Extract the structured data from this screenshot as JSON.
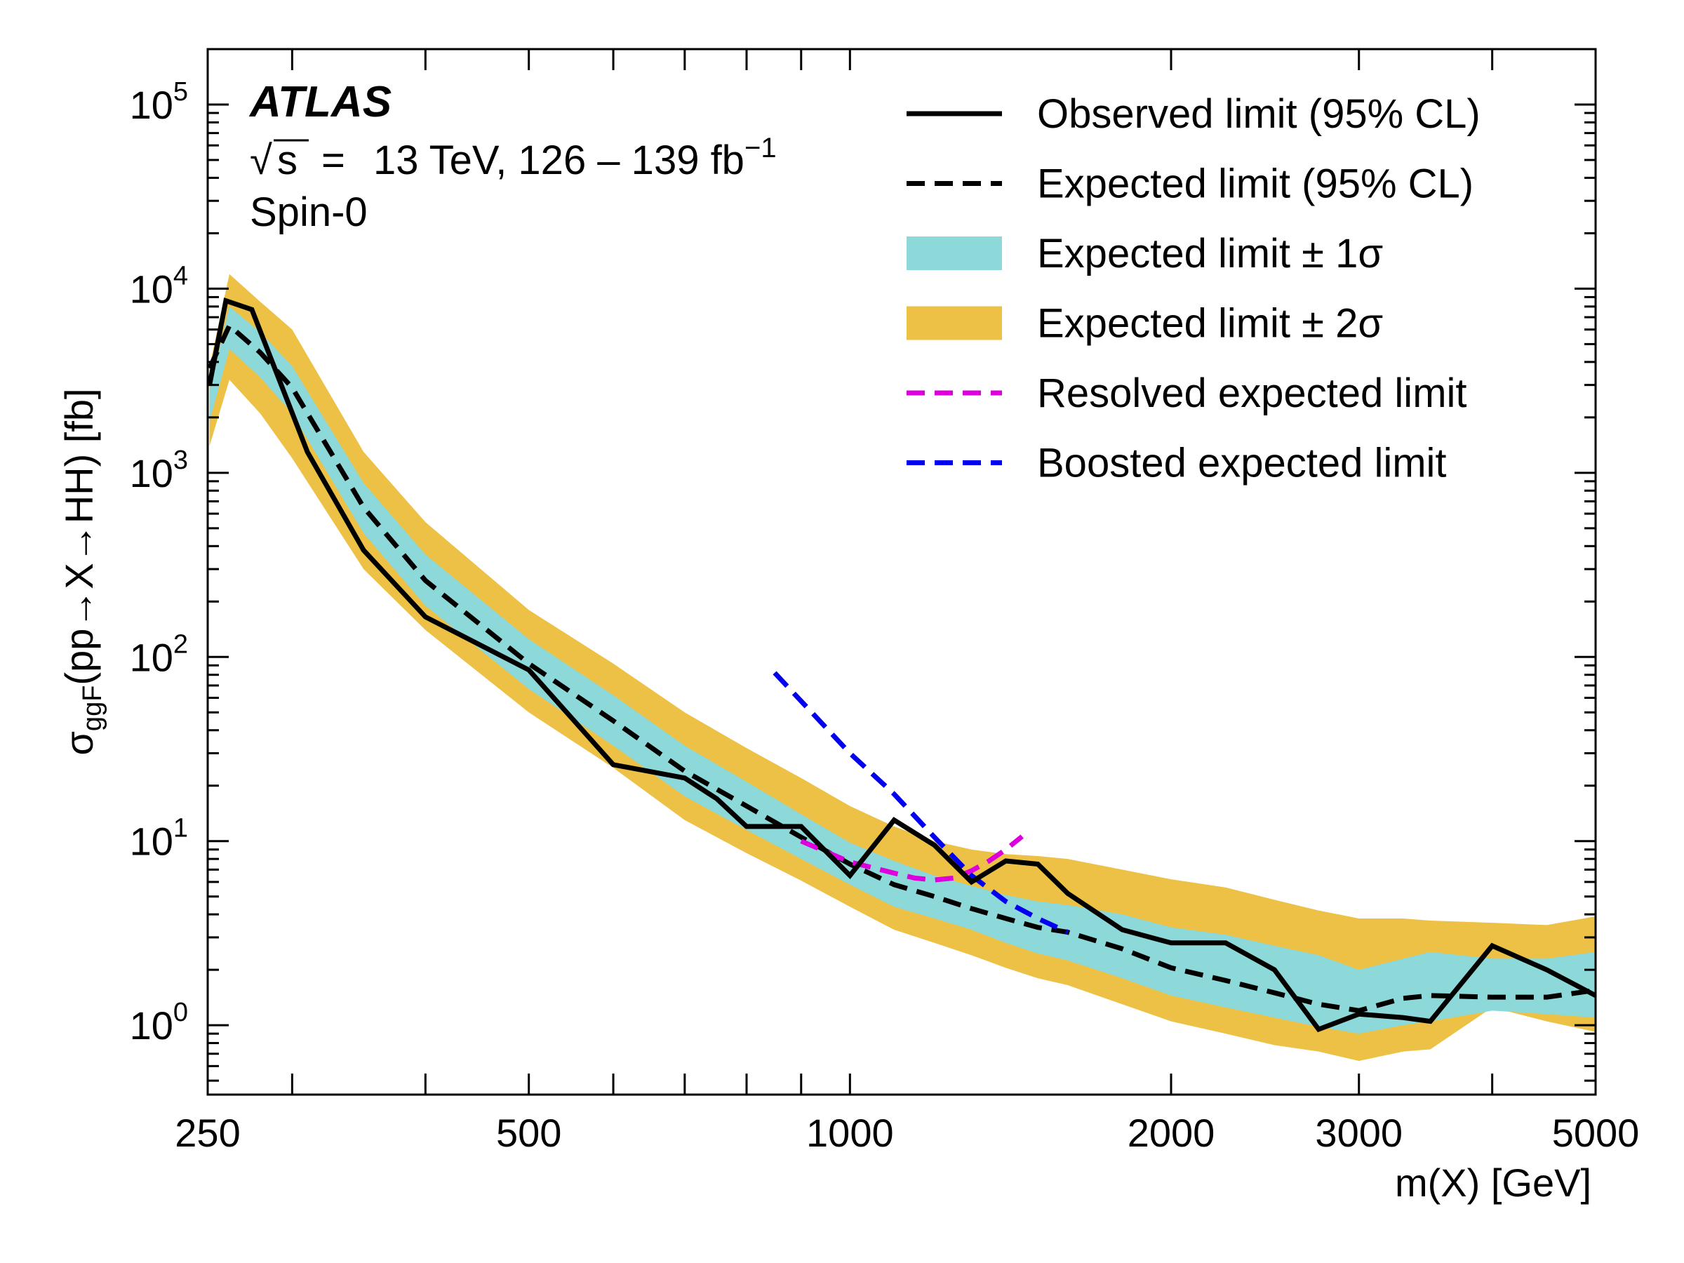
{
  "chart_data": {
    "type": "line",
    "experiment_label": "ATLAS",
    "energy_label": {
      "sqrt": "√",
      "s": "s",
      "eq": "=",
      "text": "13 TeV, 126 – 139 fb",
      "sup": "−1"
    },
    "spin_label": "Spin-0",
    "xlabel": "m(X) [GeV]",
    "ylabel": {
      "sigma": "σ",
      "sub": "ggF",
      "rest": "(pp→X→HH) [fb]"
    },
    "xscale": "log",
    "yscale": "log",
    "xlim": [
      250,
      5000
    ],
    "ylim": [
      0.42,
      200000
    ],
    "x_ticks": [
      250,
      500,
      1000,
      2000,
      3000,
      5000
    ],
    "x_tick_labels": [
      "250",
      "500",
      "1000",
      "2000",
      "3000",
      "5000"
    ],
    "y_ticks": [
      {
        "base": "10",
        "exp": "0",
        "value": 1
      },
      {
        "base": "10",
        "exp": "1",
        "value": 10
      },
      {
        "base": "10",
        "exp": "2",
        "value": 100
      },
      {
        "base": "10",
        "exp": "3",
        "value": 1000
      },
      {
        "base": "10",
        "exp": "4",
        "value": 10000
      },
      {
        "base": "10",
        "exp": "5",
        "value": 100000
      }
    ],
    "legend_position": "top-right",
    "legend": [
      {
        "label": "Observed limit (95% CL)",
        "style": "solid",
        "color": "#000000"
      },
      {
        "label": "Expected limit (95% CL)",
        "style": "dashed",
        "color": "#000000"
      },
      {
        "label": "Expected limit ± 1σ",
        "style": "band",
        "color": "#8dd8d8"
      },
      {
        "label": "Expected limit ± 2σ",
        "style": "band",
        "color": "#edc145"
      },
      {
        "label": "Resolved expected limit",
        "style": "dashed",
        "color": "#dd00dd"
      },
      {
        "label": "Boosted expected limit",
        "style": "dashed",
        "color": "#0000ee"
      }
    ],
    "band_2sigma": {
      "x": [
        251,
        262,
        280,
        300,
        350,
        400,
        500,
        600,
        700,
        800,
        900,
        1000,
        1100,
        1200,
        1300,
        1400,
        1500,
        1600,
        1800,
        2000,
        2250,
        2500,
        2750,
        3000,
        3300,
        3500,
        4000,
        4500,
        5000
      ],
      "upper": [
        3800,
        12000,
        8500,
        6000,
        1300,
        540,
        180,
        92,
        50,
        32,
        22,
        15.5,
        12,
        10,
        9,
        8.5,
        8.3,
        8,
        7,
        6.2,
        5.6,
        4.8,
        4.2,
        3.8,
        3.8,
        3.7,
        3.6,
        3.5,
        3.9
      ],
      "lower": [
        1400,
        3200,
        2100,
        1200,
        300,
        140,
        50,
        25,
        13,
        8.6,
        6.1,
        4.4,
        3.3,
        2.8,
        2.4,
        2.05,
        1.8,
        1.65,
        1.3,
        1.05,
        0.9,
        0.78,
        0.72,
        0.64,
        0.72,
        0.74,
        1.25,
        1.05,
        0.92
      ]
    },
    "band_1sigma": {
      "x": [
        251,
        262,
        280,
        300,
        350,
        400,
        500,
        600,
        700,
        800,
        900,
        1000,
        1100,
        1200,
        1300,
        1400,
        1500,
        1600,
        1800,
        2000,
        2250,
        2500,
        2750,
        3000,
        3300,
        3500,
        4000,
        4500,
        5000
      ],
      "upper": [
        2800,
        8000,
        5800,
        3800,
        880,
        360,
        125,
        62,
        33,
        21,
        14,
        9.8,
        7.8,
        6.5,
        5.7,
        5.1,
        4.7,
        4.5,
        4.0,
        3.4,
        3.1,
        2.7,
        2.4,
        2.0,
        2.3,
        2.5,
        2.3,
        2.3,
        2.5
      ],
      "lower": [
        1900,
        4700,
        3300,
        2100,
        470,
        190,
        67,
        33,
        17.5,
        11.5,
        8.0,
        5.8,
        4.4,
        3.8,
        3.3,
        2.8,
        2.45,
        2.25,
        1.8,
        1.45,
        1.25,
        1.1,
        0.98,
        0.9,
        1.0,
        1.05,
        1.2,
        1.15,
        1.1
      ]
    },
    "series": [
      {
        "name": "Observed limit (95% CL)",
        "color": "#000000",
        "style": "solid",
        "x": [
          251,
          260,
          275,
          290,
          310,
          350,
          400,
          500,
          600,
          700,
          750,
          800,
          900,
          1000,
          1100,
          1200,
          1300,
          1400,
          1500,
          1600,
          1800,
          2000,
          2250,
          2500,
          2750,
          3000,
          3300,
          3500,
          4000,
          4500,
          5000
        ],
        "y": [
          3000,
          8600,
          7700,
          3500,
          1300,
          380,
          165,
          85,
          26,
          22,
          17,
          12,
          12,
          6.5,
          13,
          9.5,
          6.0,
          7.8,
          7.5,
          5.2,
          3.3,
          2.8,
          2.8,
          2.0,
          0.95,
          1.15,
          1.1,
          1.05,
          2.7,
          2.0,
          1.45
        ]
      },
      {
        "name": "Expected limit (95% CL)",
        "color": "#000000",
        "style": "dashed",
        "x": [
          251,
          262,
          280,
          300,
          350,
          400,
          500,
          600,
          700,
          800,
          900,
          1000,
          1100,
          1200,
          1300,
          1400,
          1500,
          1600,
          1800,
          2000,
          2250,
          2500,
          2750,
          3000,
          3300,
          3500,
          4000,
          4500,
          5000
        ],
        "y": [
          3700,
          6300,
          4500,
          2900,
          650,
          260,
          92,
          45,
          24,
          15.5,
          10.5,
          7.5,
          5.8,
          5.0,
          4.3,
          3.8,
          3.4,
          3.2,
          2.6,
          2.05,
          1.75,
          1.5,
          1.3,
          1.2,
          1.4,
          1.45,
          1.42,
          1.42,
          1.55
        ]
      },
      {
        "name": "Resolved expected limit",
        "color": "#dd00dd",
        "style": "dashed",
        "x": [
          900,
          1000,
          1100,
          1150,
          1200,
          1250,
          1300,
          1350,
          1400,
          1450
        ],
        "y": [
          10,
          7.7,
          6.7,
          6.3,
          6.15,
          6.3,
          6.9,
          7.8,
          9.0,
          10.6
        ]
      },
      {
        "name": "Boosted expected limit",
        "color": "#0000ee",
        "style": "dashed",
        "x": [
          850,
          1000,
          1100,
          1200,
          1300,
          1400,
          1500,
          1600
        ],
        "y": [
          82,
          30,
          18,
          10.5,
          6.5,
          4.7,
          3.8,
          3.2
        ]
      }
    ]
  }
}
